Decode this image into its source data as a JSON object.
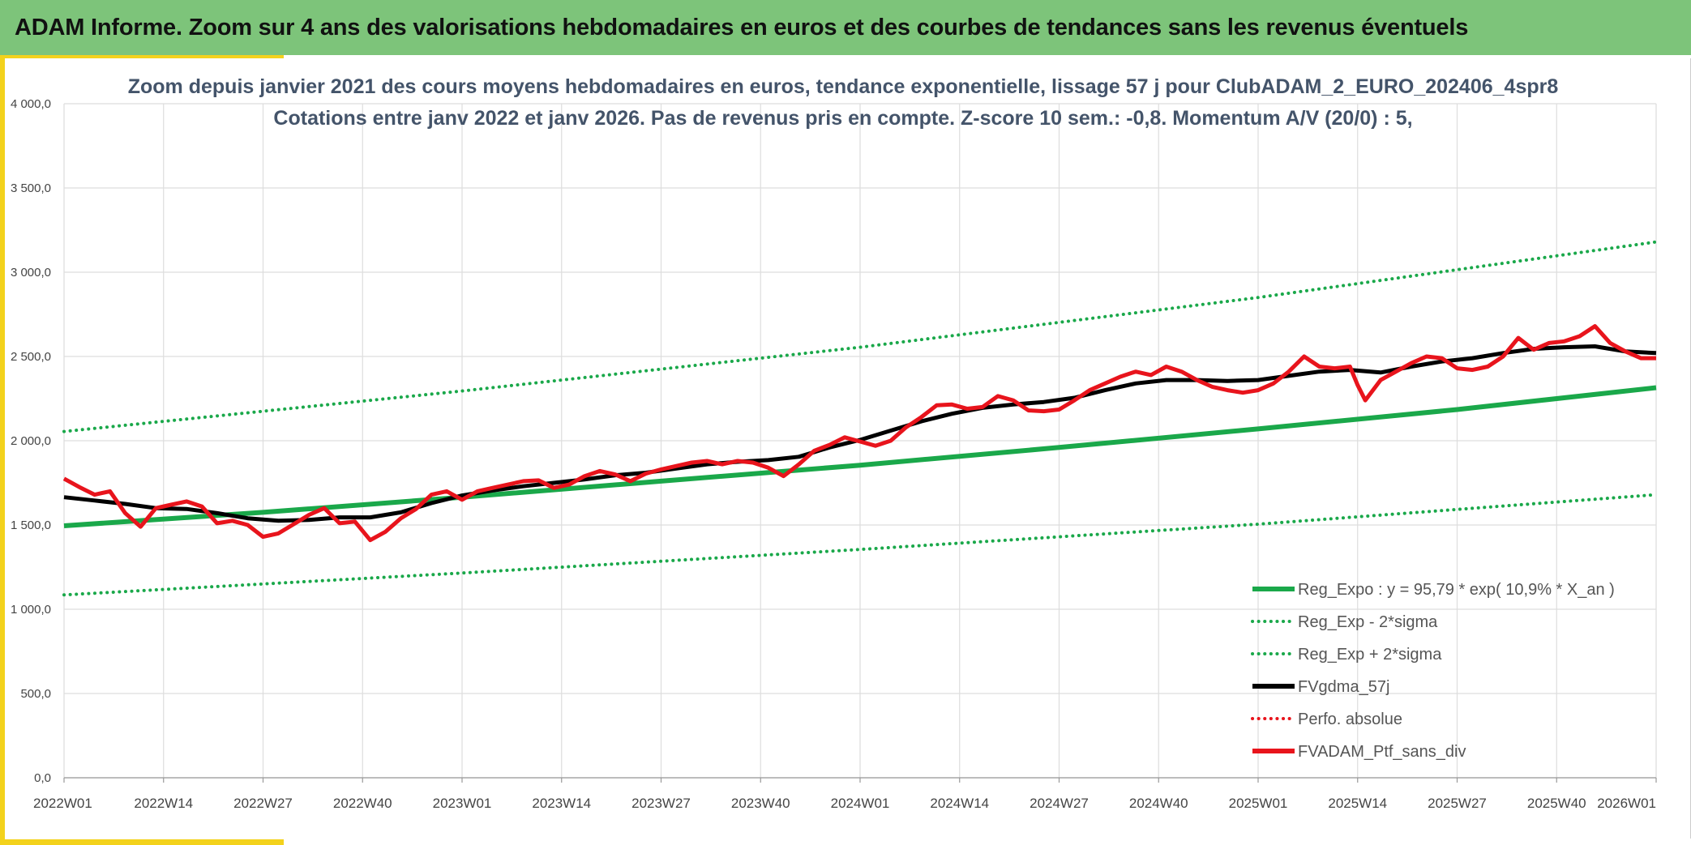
{
  "header": {
    "title": "ADAM Informe. Zoom sur 4 ans des valorisations hebdomadaires en euros et des courbes de tendances sans les revenus éventuels"
  },
  "colors": {
    "banner": "#7dc47a",
    "accent_edge": "#f3d21c",
    "reg_expo": "#1aa84a",
    "reg_band": "#1aa84a",
    "fvgdma": "#000000",
    "perfo": "#e8141c",
    "fvadam": "#e8141c",
    "grid": "#dddddd",
    "title": "#44546a"
  },
  "chart_data": {
    "type": "line",
    "title_lines": [
      "Zoom depuis janvier 2021 des cours moyens hebdomadaires en euros, tendance exponentielle, lissage 57 j pour ClubADAM_2_EURO_202406_4spr8",
      "Cotations entre janv 2022 et janv 2026. Pas de revenus pris en compte. Z-score 10 sem.: -0,8. Momentum A/V (20/0) : 5,"
    ],
    "xlabel": "",
    "ylabel": "",
    "x_weeks": [
      0,
      208
    ],
    "ylim": [
      0,
      4000
    ],
    "y_ticks": [
      0,
      500,
      1000,
      1500,
      2000,
      2500,
      3000,
      3500,
      4000
    ],
    "y_tick_labels": [
      "0,0",
      "500,0",
      "1 000,0",
      "1 500,0",
      "2 000,0",
      "2 500,0",
      "3 000,0",
      "3 500,0",
      "4 000,0"
    ],
    "x_ticks": [
      0,
      13,
      26,
      39,
      52,
      65,
      78,
      91,
      104,
      117,
      130,
      143,
      156,
      169,
      182,
      195,
      208
    ],
    "x_tick_labels": [
      "2022W01",
      "2022W14",
      "2022W27",
      "2022W40",
      "2023W01",
      "2023W14",
      "2023W27",
      "2023W40",
      "2024W01",
      "2024W14",
      "2024W27",
      "2024W40",
      "2025W01",
      "2025W14",
      "2025W27",
      "2025W40",
      "2026W01"
    ],
    "grid": true,
    "legend_position": "bottom-right",
    "series": [
      {
        "name": "Reg_Expo : y = 95,79 * exp( 10,9% *  X_an )",
        "style": "solid",
        "color": "#1aa84a",
        "width": 6,
        "x": [
          0,
          26,
          52,
          78,
          104,
          130,
          156,
          182,
          208
        ],
        "values": [
          1495,
          1575,
          1665,
          1760,
          1855,
          1960,
          2070,
          2185,
          2315
        ]
      },
      {
        "name": "Reg_Exp - 2*sigma",
        "style": "dotted",
        "color": "#1aa84a",
        "width": 4,
        "x": [
          0,
          52,
          104,
          156,
          208
        ],
        "values": [
          1085,
          1215,
          1355,
          1505,
          1680
        ]
      },
      {
        "name": "Reg_Exp + 2*sigma",
        "style": "dotted",
        "color": "#1aa84a",
        "width": 4,
        "x": [
          0,
          52,
          104,
          156,
          208
        ],
        "values": [
          2055,
          2295,
          2555,
          2850,
          3180
        ]
      },
      {
        "name": "FVgdma_57j",
        "style": "solid",
        "color": "#000000",
        "width": 5,
        "x": [
          0,
          4,
          8,
          12,
          16,
          20,
          24,
          28,
          32,
          36,
          40,
          44,
          48,
          52,
          56,
          60,
          64,
          68,
          72,
          76,
          80,
          84,
          88,
          92,
          96,
          100,
          104,
          108,
          112,
          116,
          120,
          124,
          128,
          132,
          136,
          140,
          144,
          148,
          152,
          156,
          160,
          164,
          168,
          172,
          176,
          180,
          184,
          188,
          192,
          196,
          200,
          204,
          208
        ],
        "values": [
          1665,
          1645,
          1625,
          1600,
          1595,
          1570,
          1540,
          1525,
          1530,
          1545,
          1545,
          1575,
          1630,
          1675,
          1705,
          1730,
          1750,
          1770,
          1795,
          1810,
          1835,
          1860,
          1875,
          1885,
          1905,
          1960,
          2005,
          2060,
          2115,
          2160,
          2195,
          2215,
          2230,
          2255,
          2300,
          2340,
          2360,
          2360,
          2355,
          2360,
          2385,
          2410,
          2420,
          2405,
          2440,
          2470,
          2490,
          2520,
          2545,
          2555,
          2560,
          2530,
          2520
        ]
      },
      {
        "name": "Perfo. absolue",
        "style": "dotted",
        "color": "#e8141c",
        "width": 4,
        "x": [],
        "values": []
      },
      {
        "name": "FVADAM_Ptf_sans_div",
        "style": "solid",
        "color": "#e8141c",
        "width": 5,
        "x": [
          0,
          2,
          4,
          6,
          8,
          10,
          12,
          14,
          16,
          18,
          20,
          22,
          24,
          26,
          28,
          30,
          32,
          34,
          36,
          38,
          40,
          42,
          44,
          46,
          48,
          50,
          52,
          54,
          56,
          58,
          60,
          62,
          64,
          66,
          68,
          70,
          72,
          74,
          76,
          78,
          80,
          82,
          84,
          86,
          88,
          90,
          92,
          94,
          96,
          98,
          100,
          102,
          104,
          106,
          108,
          110,
          112,
          114,
          116,
          118,
          120,
          122,
          124,
          126,
          128,
          130,
          132,
          134,
          136,
          138,
          140,
          142,
          144,
          146,
          148,
          150,
          152,
          154,
          156,
          158,
          160,
          162,
          164,
          166,
          168,
          169,
          170,
          172,
          174,
          176,
          178,
          180,
          182,
          184,
          186,
          188,
          190,
          192,
          194,
          196,
          198,
          200,
          202,
          204,
          206,
          208
        ],
        "values": [
          1775,
          1725,
          1680,
          1700,
          1570,
          1490,
          1600,
          1620,
          1640,
          1610,
          1510,
          1525,
          1500,
          1430,
          1450,
          1505,
          1560,
          1600,
          1510,
          1520,
          1410,
          1460,
          1540,
          1595,
          1680,
          1700,
          1650,
          1700,
          1720,
          1740,
          1760,
          1765,
          1720,
          1740,
          1790,
          1820,
          1800,
          1760,
          1805,
          1830,
          1850,
          1870,
          1880,
          1860,
          1880,
          1870,
          1840,
          1790,
          1860,
          1940,
          1975,
          2020,
          1995,
          1970,
          2000,
          2080,
          2140,
          2210,
          2215,
          2190,
          2200,
          2265,
          2240,
          2180,
          2175,
          2185,
          2240,
          2300,
          2340,
          2380,
          2410,
          2390,
          2440,
          2410,
          2360,
          2320,
          2300,
          2285,
          2300,
          2340,
          2410,
          2500,
          2440,
          2430,
          2440,
          2330,
          2240,
          2360,
          2410,
          2460,
          2500,
          2490,
          2430,
          2420,
          2440,
          2500,
          2610,
          2540,
          2580,
          2590,
          2620,
          2680,
          2580,
          2530,
          2490,
          2490
        ]
      }
    ]
  }
}
